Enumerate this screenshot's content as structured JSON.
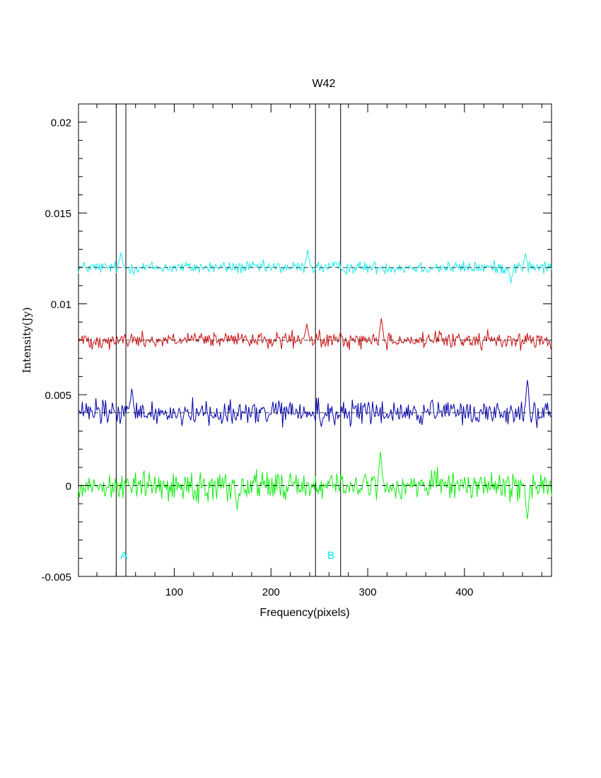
{
  "chart_data": {
    "type": "line",
    "title": "W42",
    "xlabel": "Frequency(pixels)",
    "ylabel": "Intensity(Jy)",
    "xlim": [
      1,
      490
    ],
    "ylim": [
      -0.005,
      0.021
    ],
    "x_ticks": [
      {
        "value": 100,
        "label": "100"
      },
      {
        "value": 200,
        "label": "200"
      },
      {
        "value": 300,
        "label": "300"
      },
      {
        "value": 400,
        "label": "400"
      }
    ],
    "y_ticks": [
      {
        "value": -0.005,
        "label": "-0.005"
      },
      {
        "value": 0,
        "label": "0"
      },
      {
        "value": 0.005,
        "label": "0.005"
      },
      {
        "value": 0.01,
        "label": "0.01"
      },
      {
        "value": 0.015,
        "label": "0.015"
      },
      {
        "value": 0.02,
        "label": "0.02"
      }
    ],
    "vertical_lines": [
      40,
      50,
      246,
      272
    ],
    "annotations": [
      {
        "text": "A",
        "x": 48,
        "y": -0.0038,
        "color": "#00e5e5"
      },
      {
        "text": "B",
        "x": 262,
        "y": -0.0038,
        "color": "#00e5e5"
      }
    ],
    "series": [
      {
        "color": "#1aeaea",
        "baseline": 0.012,
        "noise_amplitude": 0.0004,
        "features": [
          {
            "x": 45,
            "y": 0.0128
          },
          {
            "x": 238,
            "y": 0.013
          },
          {
            "x": 463,
            "y": 0.0128
          },
          {
            "x": 448,
            "y": 0.0112
          }
        ]
      },
      {
        "color": "#cc1111",
        "baseline": 0.008,
        "noise_amplitude": 0.0005,
        "features": [
          {
            "x": 314,
            "y": 0.0092
          },
          {
            "x": 237,
            "y": 0.0089
          },
          {
            "x": 490,
            "y": 0.0074
          }
        ]
      },
      {
        "color": "#0000aa",
        "baseline": 0.004,
        "noise_amplitude": 0.0008,
        "features": [
          {
            "x": 56,
            "y": 0.0053
          },
          {
            "x": 465,
            "y": 0.0059
          },
          {
            "x": 252,
            "y": 0.0033
          }
        ]
      },
      {
        "color": "#11ee11",
        "baseline": 0.0,
        "noise_amplitude": 0.0009,
        "features": [
          {
            "x": 313,
            "y": 0.0018
          },
          {
            "x": 465,
            "y": -0.0019
          },
          {
            "x": 165,
            "y": -0.0012
          }
        ]
      }
    ]
  }
}
